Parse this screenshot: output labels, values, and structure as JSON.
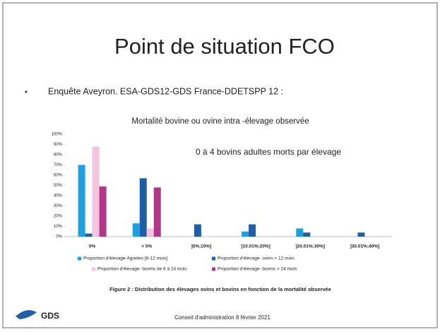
{
  "slide_title": "Point de situation FCO",
  "bullet": "Enquête Aveyron. ESA-GDS12-GDS France-DDETSPP 12 :",
  "caption": "Figure 2 : Distribution des élevages ovins et bovins en fonction de la mortalité observée",
  "footer": "Conseil d'administration 8 février 2021",
  "logo": "GDS",
  "chart_data": {
    "type": "bar",
    "title": "Mortalité bovine ou ovine intra -élevage observée",
    "annotation": "0 à 4 bovins adultes morts par élevage",
    "categories": [
      "0%",
      "< 5%",
      "]5%,10%]",
      "]10.01%;20%]",
      "]20.01%;30%]",
      "]30.01%;40%]"
    ],
    "series": [
      {
        "name": "Proportion d'élevage-Agneles [6-12 mois]",
        "color": "#1e9fe0",
        "values": [
          70,
          13,
          0,
          5,
          8,
          0
        ]
      },
      {
        "name": "Proportion d'élevage- ovins > 12 mois",
        "color": "#1f5fa8",
        "values": [
          3,
          57,
          12,
          12,
          4,
          4
        ]
      },
      {
        "name": "Proportion d'élevage- bovins de 6 à 24 mois",
        "color": "#f2c4de",
        "values": [
          88,
          8,
          0,
          0,
          0,
          0
        ]
      },
      {
        "name": "Proportion d'élevage- bovins > 24 mois",
        "color": "#b0378a",
        "values": [
          49,
          48,
          0,
          0,
          0,
          0
        ]
      }
    ],
    "ylim": [
      0,
      100
    ],
    "yticks": [
      {
        "value": 0,
        "label": "0%"
      },
      {
        "value": 10,
        "label": "10%"
      },
      {
        "value": 20,
        "label": "20%"
      },
      {
        "value": 30,
        "label": "30%"
      },
      {
        "value": 40,
        "label": "40%"
      },
      {
        "value": 50,
        "label": "50%"
      },
      {
        "value": 60,
        "label": "60%"
      },
      {
        "value": 70,
        "label": "70%"
      },
      {
        "value": 80,
        "label": "80%"
      },
      {
        "value": 90,
        "label": "90%"
      },
      {
        "value": 100,
        "label": "100%"
      }
    ]
  }
}
